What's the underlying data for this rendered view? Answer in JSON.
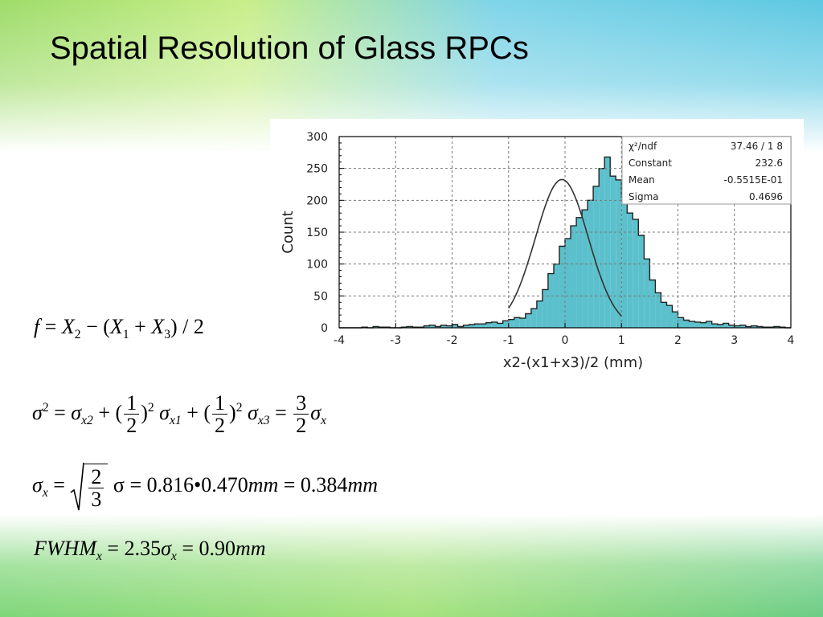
{
  "slide": {
    "title": "Spatial Resolution of Glass RPCs"
  },
  "chart_data": {
    "type": "bar",
    "xlabel": "x2-(x1+x3)/2 (mm)",
    "ylabel": "Count",
    "xlim": [
      -4,
      4
    ],
    "ylim": [
      0,
      300
    ],
    "xticks": [
      "-4",
      "-3",
      "-2",
      "-1",
      "0",
      "1",
      "2",
      "3",
      "4"
    ],
    "yticks": [
      "0",
      "50",
      "100",
      "150",
      "200",
      "250",
      "300"
    ],
    "grid": true,
    "bin_width": 0.1,
    "bin_start": -4.0,
    "values": [
      0,
      0,
      0,
      0,
      1,
      0,
      2,
      1,
      1,
      0,
      0,
      1,
      2,
      1,
      1,
      3,
      4,
      2,
      4,
      3,
      5,
      2,
      4,
      5,
      6,
      6,
      8,
      9,
      7,
      11,
      13,
      16,
      15,
      22,
      30,
      42,
      60,
      85,
      100,
      128,
      140,
      160,
      173,
      185,
      200,
      222,
      250,
      268,
      238,
      232,
      205,
      180,
      170,
      145,
      108,
      75,
      55,
      40,
      35,
      25,
      16,
      12,
      10,
      9,
      8,
      10,
      6,
      5,
      7,
      4,
      3,
      4,
      2,
      3,
      2,
      1,
      1,
      2,
      1,
      0
    ],
    "fit": {
      "type": "gaussian",
      "constant": 232.6,
      "mean": -0.05515,
      "sigma": 0.4696,
      "range": [
        -1.0,
        1.0
      ]
    },
    "stats": [
      {
        "label": "χ²/ndf",
        "value": "37.46  /  1 8"
      },
      {
        "label": "Constant",
        "value": "232.6"
      },
      {
        "label": "Mean",
        "value": "-0.5515E-01"
      },
      {
        "label": "Sigma",
        "value": "0.4696"
      }
    ],
    "bar_color": "#5bc0cc",
    "line_color": "#222222",
    "grid_color": "#777777"
  },
  "equations": {
    "eq1": {
      "f": "f",
      "eq": "=",
      "X2": "X",
      "sub2": "2",
      "minus": "−",
      "lp": "(",
      "X1": "X",
      "sub1": "1",
      "plus": "+",
      "X3": "X",
      "sub3": "3",
      "rp": ")",
      "tail": "/ 2"
    },
    "eq2": {
      "sig": "σ",
      "sup2": "2",
      "eq": "=",
      "sig_x2": "σ",
      "sub_x2": "x2",
      "plus": "+",
      "half_num": "1",
      "half_den": "2",
      "lp": "(",
      "rp": ")",
      "sig_x1": "σ",
      "sub_x1": "x1",
      "sig_x3": "σ",
      "sub_x3": "x3",
      "three": "3",
      "two": "2",
      "sig_x": "σ",
      "sub_x": "x"
    },
    "eq3": {
      "sig": "σ",
      "sub_x": "x",
      "eq": "=",
      "frac_num": "2",
      "frac_den": "3",
      "rest": "σ = 0.816•0.470",
      "mm1": "mm",
      "eq2": "= 0.384",
      "mm2": "mm"
    },
    "eq4": {
      "fwhm": "FWHM",
      "sub_x": "x",
      "mid": "= 2.35",
      "sig": "σ",
      "sub_x2": "x",
      "eq": "= 0.90",
      "mm": "mm"
    }
  }
}
